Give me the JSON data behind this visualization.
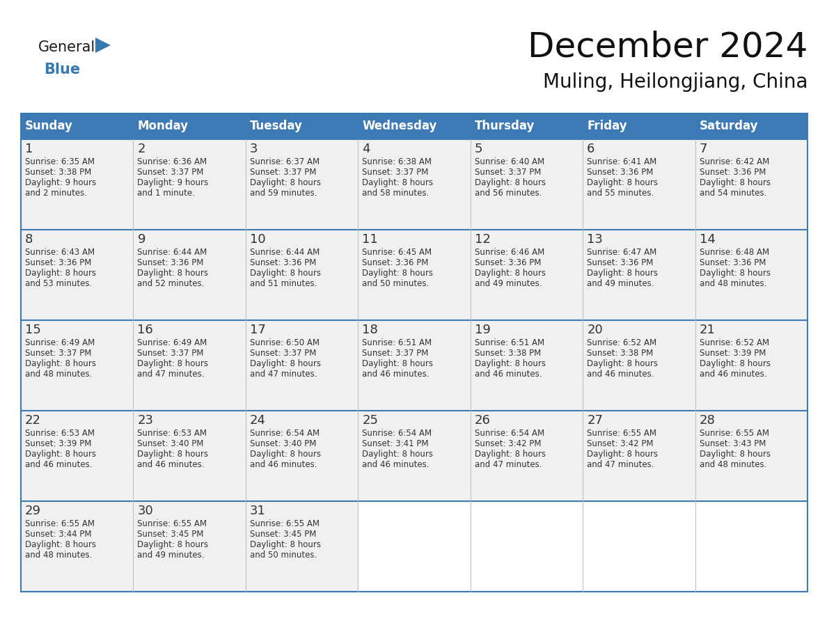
{
  "title": "December 2024",
  "subtitle": "Muling, Heilongjiang, China",
  "header_color": "#3d7ab5",
  "header_text_color": "#ffffff",
  "cell_bg_color": "#f0f0f0",
  "border_color": "#3d7ab5",
  "row_sep_color": "#3d7ab5",
  "col_sep_color": "#cccccc",
  "day_names": [
    "Sunday",
    "Monday",
    "Tuesday",
    "Wednesday",
    "Thursday",
    "Friday",
    "Saturday"
  ],
  "days": [
    {
      "day": 1,
      "col": 0,
      "row": 0,
      "sunrise": "6:35 AM",
      "sunset": "3:38 PM",
      "daylight": "9 hours and 2 minutes."
    },
    {
      "day": 2,
      "col": 1,
      "row": 0,
      "sunrise": "6:36 AM",
      "sunset": "3:37 PM",
      "daylight": "9 hours and 1 minute."
    },
    {
      "day": 3,
      "col": 2,
      "row": 0,
      "sunrise": "6:37 AM",
      "sunset": "3:37 PM",
      "daylight": "8 hours and 59 minutes."
    },
    {
      "day": 4,
      "col": 3,
      "row": 0,
      "sunrise": "6:38 AM",
      "sunset": "3:37 PM",
      "daylight": "8 hours and 58 minutes."
    },
    {
      "day": 5,
      "col": 4,
      "row": 0,
      "sunrise": "6:40 AM",
      "sunset": "3:37 PM",
      "daylight": "8 hours and 56 minutes."
    },
    {
      "day": 6,
      "col": 5,
      "row": 0,
      "sunrise": "6:41 AM",
      "sunset": "3:36 PM",
      "daylight": "8 hours and 55 minutes."
    },
    {
      "day": 7,
      "col": 6,
      "row": 0,
      "sunrise": "6:42 AM",
      "sunset": "3:36 PM",
      "daylight": "8 hours and 54 minutes."
    },
    {
      "day": 8,
      "col": 0,
      "row": 1,
      "sunrise": "6:43 AM",
      "sunset": "3:36 PM",
      "daylight": "8 hours and 53 minutes."
    },
    {
      "day": 9,
      "col": 1,
      "row": 1,
      "sunrise": "6:44 AM",
      "sunset": "3:36 PM",
      "daylight": "8 hours and 52 minutes."
    },
    {
      "day": 10,
      "col": 2,
      "row": 1,
      "sunrise": "6:44 AM",
      "sunset": "3:36 PM",
      "daylight": "8 hours and 51 minutes."
    },
    {
      "day": 11,
      "col": 3,
      "row": 1,
      "sunrise": "6:45 AM",
      "sunset": "3:36 PM",
      "daylight": "8 hours and 50 minutes."
    },
    {
      "day": 12,
      "col": 4,
      "row": 1,
      "sunrise": "6:46 AM",
      "sunset": "3:36 PM",
      "daylight": "8 hours and 49 minutes."
    },
    {
      "day": 13,
      "col": 5,
      "row": 1,
      "sunrise": "6:47 AM",
      "sunset": "3:36 PM",
      "daylight": "8 hours and 49 minutes."
    },
    {
      "day": 14,
      "col": 6,
      "row": 1,
      "sunrise": "6:48 AM",
      "sunset": "3:36 PM",
      "daylight": "8 hours and 48 minutes."
    },
    {
      "day": 15,
      "col": 0,
      "row": 2,
      "sunrise": "6:49 AM",
      "sunset": "3:37 PM",
      "daylight": "8 hours and 48 minutes."
    },
    {
      "day": 16,
      "col": 1,
      "row": 2,
      "sunrise": "6:49 AM",
      "sunset": "3:37 PM",
      "daylight": "8 hours and 47 minutes."
    },
    {
      "day": 17,
      "col": 2,
      "row": 2,
      "sunrise": "6:50 AM",
      "sunset": "3:37 PM",
      "daylight": "8 hours and 47 minutes."
    },
    {
      "day": 18,
      "col": 3,
      "row": 2,
      "sunrise": "6:51 AM",
      "sunset": "3:37 PM",
      "daylight": "8 hours and 46 minutes."
    },
    {
      "day": 19,
      "col": 4,
      "row": 2,
      "sunrise": "6:51 AM",
      "sunset": "3:38 PM",
      "daylight": "8 hours and 46 minutes."
    },
    {
      "day": 20,
      "col": 5,
      "row": 2,
      "sunrise": "6:52 AM",
      "sunset": "3:38 PM",
      "daylight": "8 hours and 46 minutes."
    },
    {
      "day": 21,
      "col": 6,
      "row": 2,
      "sunrise": "6:52 AM",
      "sunset": "3:39 PM",
      "daylight": "8 hours and 46 minutes."
    },
    {
      "day": 22,
      "col": 0,
      "row": 3,
      "sunrise": "6:53 AM",
      "sunset": "3:39 PM",
      "daylight": "8 hours and 46 minutes."
    },
    {
      "day": 23,
      "col": 1,
      "row": 3,
      "sunrise": "6:53 AM",
      "sunset": "3:40 PM",
      "daylight": "8 hours and 46 minutes."
    },
    {
      "day": 24,
      "col": 2,
      "row": 3,
      "sunrise": "6:54 AM",
      "sunset": "3:40 PM",
      "daylight": "8 hours and 46 minutes."
    },
    {
      "day": 25,
      "col": 3,
      "row": 3,
      "sunrise": "6:54 AM",
      "sunset": "3:41 PM",
      "daylight": "8 hours and 46 minutes."
    },
    {
      "day": 26,
      "col": 4,
      "row": 3,
      "sunrise": "6:54 AM",
      "sunset": "3:42 PM",
      "daylight": "8 hours and 47 minutes."
    },
    {
      "day": 27,
      "col": 5,
      "row": 3,
      "sunrise": "6:55 AM",
      "sunset": "3:42 PM",
      "daylight": "8 hours and 47 minutes."
    },
    {
      "day": 28,
      "col": 6,
      "row": 3,
      "sunrise": "6:55 AM",
      "sunset": "3:43 PM",
      "daylight": "8 hours and 48 minutes."
    },
    {
      "day": 29,
      "col": 0,
      "row": 4,
      "sunrise": "6:55 AM",
      "sunset": "3:44 PM",
      "daylight": "8 hours and 48 minutes."
    },
    {
      "day": 30,
      "col": 1,
      "row": 4,
      "sunrise": "6:55 AM",
      "sunset": "3:45 PM",
      "daylight": "8 hours and 49 minutes."
    },
    {
      "day": 31,
      "col": 2,
      "row": 4,
      "sunrise": "6:55 AM",
      "sunset": "3:45 PM",
      "daylight": "8 hours and 50 minutes."
    }
  ],
  "logo_general_color": "#1a1a1a",
  "logo_blue_color": "#3579b1",
  "title_fontsize": 36,
  "subtitle_fontsize": 20,
  "day_name_fontsize": 12,
  "day_num_fontsize": 13,
  "cell_text_fontsize": 8.5
}
